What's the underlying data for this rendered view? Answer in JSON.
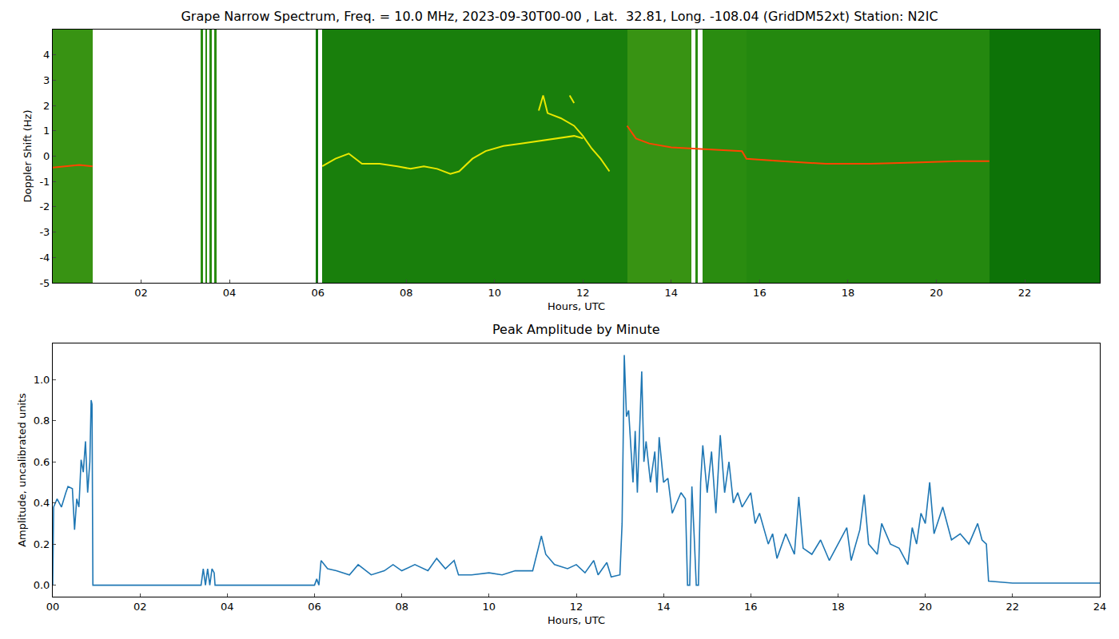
{
  "chart_data": [
    {
      "type": "spectrogram",
      "title": "Grape Narrow Spectrum, Freq. = 10.0 MHz, 2023-09-30T00-00 , Lat.  32.81, Long. -108.04 (GridDM52xt) Station: N2IC",
      "x_label": "Hours, UTC",
      "y_label": "Doppler Shift (Hz)",
      "xlim": [
        0,
        23.7
      ],
      "ylim": [
        -5,
        5
      ],
      "xticks": [
        {
          "value": 2,
          "label": "02"
        },
        {
          "value": 4,
          "label": "04"
        },
        {
          "value": 6,
          "label": "06"
        },
        {
          "value": 8,
          "label": "08"
        },
        10,
        12,
        14,
        16,
        18,
        20,
        22
      ],
      "yticks": [
        -5,
        -4,
        -3,
        -2,
        -1,
        0,
        1,
        2,
        3,
        4
      ],
      "zlim": [
        0,
        1
      ],
      "cells": {
        "x_edges": [
          0,
          0.9,
          3.35,
          3.4,
          3.45,
          3.5,
          3.55,
          3.6,
          3.65,
          3.7,
          5.95,
          6.0,
          6.1,
          13.0,
          14.45,
          14.55,
          14.6,
          14.7,
          15.7,
          21.2,
          23.7
        ],
        "y_edges": [
          -5,
          5
        ],
        "values": [
          [
            0.55,
            null,
            0.5,
            null,
            0.5,
            null,
            0.5,
            null,
            0.5,
            null,
            0.3,
            null,
            0.35,
            0.55,
            null,
            0.5,
            null,
            0.5,
            0.45,
            0.2
          ]
        ]
      },
      "series": [
        {
          "color": "#e8e800",
          "x": [
            6.1,
            6.4,
            6.7,
            7.0,
            7.4,
            7.8,
            8.1,
            8.4,
            8.7,
            9.0,
            9.2,
            9.5,
            9.8,
            10.2,
            10.6,
            11.0,
            11.4,
            11.8,
            12.0,
            12.0,
            11.0,
            11.1,
            11.2,
            11.5,
            11.8,
            12.0,
            12.2,
            12.4,
            12.6,
            12.6,
            11.7,
            11.8
          ],
          "values": [
            -0.4,
            -0.1,
            0.1,
            -0.3,
            -0.3,
            -0.4,
            -0.5,
            -0.4,
            -0.5,
            -0.7,
            -0.6,
            -0.1,
            0.2,
            0.4,
            0.5,
            0.6,
            0.7,
            0.8,
            0.7,
            null,
            1.8,
            2.4,
            1.7,
            1.5,
            1.2,
            0.8,
            0.3,
            -0.1,
            -0.6,
            null,
            2.4,
            2.1
          ]
        },
        {
          "color": "#ff4500",
          "x": [
            0.0,
            0.3,
            0.6,
            0.9,
            3.0,
            13.0,
            13.2,
            13.5,
            14.0,
            14.5,
            15.0,
            15.6,
            15.7,
            16.5,
            17.5,
            18.5,
            19.5,
            20.5,
            21.2
          ],
          "values": [
            -0.45,
            -0.4,
            -0.35,
            -0.4,
            null,
            1.2,
            0.7,
            0.5,
            0.35,
            0.3,
            0.25,
            0.2,
            -0.1,
            -0.2,
            -0.3,
            -0.3,
            -0.25,
            -0.2,
            -0.2
          ]
        }
      ]
    },
    {
      "type": "line",
      "title": "Peak Amplitude by Minute",
      "x_label": "Hours, UTC",
      "y_label": "Amplitude, uncalibrated units",
      "xlim": [
        0,
        24
      ],
      "ylim": [
        -0.056,
        1.176
      ],
      "xticks": [
        {
          "value": 0,
          "label": "00"
        },
        {
          "value": 2,
          "label": "02"
        },
        {
          "value": 4,
          "label": "04"
        },
        {
          "value": 6,
          "label": "06"
        },
        {
          "value": 8,
          "label": "08"
        },
        10,
        12,
        14,
        16,
        18,
        20,
        22,
        24
      ],
      "yticks": [
        {
          "value": 0,
          "label": "0.0"
        },
        0.2,
        0.4,
        0.6,
        0.8,
        {
          "value": 1,
          "label": "1.0"
        }
      ],
      "color": "#1f77b4",
      "x": [
        0.0,
        0.02,
        0.1,
        0.2,
        0.3,
        0.35,
        0.45,
        0.5,
        0.55,
        0.6,
        0.65,
        0.7,
        0.75,
        0.8,
        0.85,
        0.88,
        0.9,
        0.92,
        3.4,
        3.45,
        3.5,
        3.55,
        3.6,
        3.65,
        3.7,
        3.72,
        6.0,
        6.05,
        6.1,
        6.15,
        6.3,
        6.5,
        6.8,
        7.0,
        7.3,
        7.6,
        7.8,
        8.0,
        8.3,
        8.6,
        8.8,
        9.0,
        9.2,
        9.3,
        9.6,
        10.0,
        10.3,
        10.6,
        11.0,
        11.1,
        11.2,
        11.3,
        11.5,
        11.8,
        12.0,
        12.2,
        12.4,
        12.5,
        12.7,
        12.8,
        13.0,
        13.05,
        13.1,
        13.15,
        13.2,
        13.3,
        13.35,
        13.4,
        13.5,
        13.55,
        13.6,
        13.7,
        13.8,
        13.85,
        13.9,
        14.0,
        14.1,
        14.2,
        14.3,
        14.4,
        14.5,
        14.55,
        14.6,
        14.65,
        14.7,
        14.75,
        14.8,
        14.85,
        14.9,
        15.0,
        15.1,
        15.2,
        15.3,
        15.4,
        15.5,
        15.6,
        15.7,
        15.8,
        16.0,
        16.1,
        16.2,
        16.4,
        16.5,
        16.6,
        16.8,
        17.0,
        17.1,
        17.2,
        17.4,
        17.6,
        17.8,
        18.0,
        18.2,
        18.3,
        18.5,
        18.6,
        18.7,
        18.9,
        19.0,
        19.2,
        19.4,
        19.6,
        19.7,
        19.8,
        19.9,
        20.0,
        20.1,
        20.2,
        20.4,
        20.6,
        20.8,
        21.0,
        21.2,
        21.3,
        21.4,
        21.45,
        22.0,
        23.0,
        24.0
      ],
      "values": [
        0.0,
        0.38,
        0.42,
        0.38,
        0.45,
        0.48,
        0.47,
        0.27,
        0.42,
        0.38,
        0.61,
        0.55,
        0.7,
        0.45,
        0.6,
        0.9,
        0.88,
        0.0,
        0.0,
        0.08,
        0.0,
        0.08,
        0.0,
        0.08,
        0.06,
        0.0,
        0.0,
        0.03,
        0.0,
        0.12,
        0.08,
        0.07,
        0.05,
        0.1,
        0.05,
        0.07,
        0.1,
        0.07,
        0.1,
        0.07,
        0.13,
        0.08,
        0.12,
        0.05,
        0.05,
        0.06,
        0.05,
        0.07,
        0.07,
        0.15,
        0.24,
        0.15,
        0.1,
        0.08,
        0.1,
        0.06,
        0.12,
        0.05,
        0.11,
        0.04,
        0.05,
        0.3,
        1.12,
        0.82,
        0.85,
        0.5,
        0.75,
        0.45,
        1.04,
        0.6,
        0.7,
        0.5,
        0.65,
        0.45,
        0.72,
        0.5,
        0.52,
        0.35,
        0.4,
        0.45,
        0.42,
        0.0,
        0.0,
        0.48,
        0.25,
        0.0,
        0.0,
        0.5,
        0.68,
        0.45,
        0.65,
        0.35,
        0.73,
        0.45,
        0.6,
        0.4,
        0.45,
        0.38,
        0.45,
        0.3,
        0.35,
        0.2,
        0.25,
        0.13,
        0.25,
        0.15,
        0.43,
        0.18,
        0.15,
        0.22,
        0.12,
        0.2,
        0.28,
        0.12,
        0.27,
        0.44,
        0.2,
        0.15,
        0.3,
        0.2,
        0.18,
        0.1,
        0.28,
        0.2,
        0.35,
        0.3,
        0.5,
        0.25,
        0.38,
        0.22,
        0.25,
        0.2,
        0.3,
        0.22,
        0.2,
        0.02,
        0.01,
        0.01,
        0.01
      ]
    }
  ]
}
